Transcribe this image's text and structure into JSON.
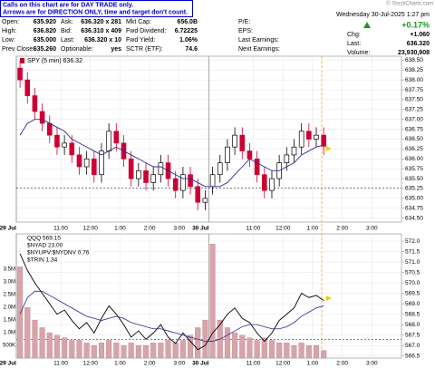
{
  "annotation": [
    "Calls on this chart are for DAY TRADE only.",
    "Arrows are for DIRECTION ONLY, time and target don't count."
  ],
  "watermark": "© StockCharts.com",
  "quote_columns": [
    [
      {
        "label": "Open:",
        "value": "635.920"
      },
      {
        "label": "High:",
        "value": "636.820"
      },
      {
        "label": "Low:",
        "value": "635.000"
      },
      {
        "label": "Prev Close:",
        "value": "635.260"
      }
    ],
    [
      {
        "label": "Ask:",
        "value": "636.320 x 281"
      },
      {
        "label": "Bid:",
        "value": "636.310 x 409"
      },
      {
        "label": "Last:",
        "value": "636.320 x 10"
      },
      {
        "label": "Optionable:",
        "value": "yes"
      }
    ],
    [
      {
        "label": "Mkt Cap:",
        "value": "656.0B"
      },
      {
        "label": "Fwd Dividend:",
        "value": "6.72225"
      },
      {
        "label": "Fwd Yield:",
        "value": "1.06%"
      },
      {
        "label": "SCTR (ETF):",
        "value": "74.6"
      }
    ],
    [
      {
        "label": "P/E:"
      },
      {
        "label": "EPS:"
      },
      {
        "label": "Last Earnings:"
      },
      {
        "label": "Next Earnings:"
      }
    ]
  ],
  "status": {
    "datetime": "Wednesday 30-Jul-2025 1:27 pm",
    "change_pct": "+0.17%",
    "rows": [
      {
        "label": "Chg:",
        "value": "+1.060"
      },
      {
        "label": "Last:",
        "value": "636.320"
      },
      {
        "label": "Volume:",
        "value": "23,930,908"
      }
    ]
  },
  "chart_data": [
    {
      "type": "candlestick",
      "title": "SPY (5 min) 636.32",
      "up_color": "#000000",
      "down_color": "#cc0033",
      "grid": true,
      "categories": [
        "29 Jul",
        null,
        null,
        null,
        null,
        null,
        "11:00",
        null,
        null,
        null,
        "12:00",
        null,
        null,
        null,
        "1:00",
        null,
        null,
        null,
        "2:00",
        null,
        null,
        null,
        "3:00",
        null,
        null,
        null,
        "30 Jul",
        null,
        null,
        null,
        null,
        null,
        "11:00",
        null,
        null,
        null,
        "12:00",
        null,
        null,
        null,
        "1:00",
        null,
        null,
        null,
        "2:00",
        null,
        null,
        null,
        "3:00",
        null,
        null,
        null
      ],
      "open": [
        638.3,
        638.0,
        637.6,
        637.2,
        636.9,
        636.6,
        636.3,
        636.4,
        636.1,
        635.8,
        636.0,
        635.6,
        636.2,
        636.7,
        636.4,
        636.0,
        635.5,
        635.7,
        635.4,
        635.6,
        635.9,
        635.5,
        635.2,
        635.6,
        635.3,
        634.9,
        635.3,
        635.6,
        635.9,
        636.3,
        636.6,
        636.2,
        636.0,
        635.6,
        635.2,
        635.5,
        635.9,
        636.1,
        636.3,
        636.7,
        636.5,
        636.6,
        null,
        null,
        null,
        null,
        null,
        null,
        null,
        null,
        null,
        null
      ],
      "high": [
        638.5,
        638.2,
        637.8,
        637.4,
        637.1,
        636.8,
        636.6,
        636.6,
        636.3,
        636.2,
        636.2,
        636.4,
        636.9,
        636.9,
        636.6,
        636.2,
        635.9,
        635.9,
        635.8,
        636.1,
        636.1,
        635.7,
        635.8,
        635.8,
        635.5,
        635.2,
        635.8,
        636.1,
        636.5,
        636.8,
        636.8,
        636.4,
        636.2,
        635.8,
        635.7,
        636.1,
        636.3,
        636.5,
        636.9,
        636.9,
        636.8,
        636.8,
        null,
        null,
        null,
        null,
        null,
        null,
        null,
        null,
        null,
        null
      ],
      "low": [
        637.8,
        637.4,
        637.0,
        636.7,
        636.4,
        636.1,
        636.1,
        635.9,
        635.6,
        635.6,
        635.4,
        635.4,
        636.0,
        636.2,
        635.8,
        635.3,
        635.3,
        635.2,
        635.2,
        635.4,
        635.3,
        635.0,
        635.0,
        635.1,
        634.7,
        634.7,
        635.1,
        635.4,
        635.7,
        636.1,
        636.0,
        635.8,
        635.4,
        635.0,
        635.0,
        635.3,
        635.7,
        635.9,
        636.1,
        636.3,
        636.3,
        636.1,
        null,
        null,
        null,
        null,
        null,
        null,
        null,
        null,
        null,
        null
      ],
      "close": [
        638.0,
        637.6,
        637.2,
        636.9,
        636.6,
        636.3,
        636.4,
        636.1,
        635.8,
        636.0,
        635.6,
        636.2,
        636.7,
        636.4,
        636.0,
        635.5,
        635.7,
        635.4,
        635.6,
        635.9,
        635.5,
        635.2,
        635.6,
        635.3,
        634.9,
        635.0,
        635.6,
        635.9,
        636.3,
        636.6,
        636.2,
        636.0,
        635.6,
        635.2,
        635.5,
        635.9,
        636.1,
        636.3,
        636.7,
        636.5,
        636.6,
        636.32,
        null,
        null,
        null,
        null,
        null,
        null,
        null,
        null,
        null,
        null
      ],
      "moving_average": {
        "color": "#2b2b8f",
        "values": [
          636.6,
          636.9,
          637.0,
          637.0,
          636.9,
          636.8,
          636.7,
          636.5,
          636.4,
          636.3,
          636.2,
          636.1,
          636.2,
          636.3,
          636.2,
          636.1,
          636.0,
          635.9,
          635.8,
          635.8,
          635.7,
          635.6,
          635.5,
          635.5,
          635.4,
          635.3,
          635.3,
          635.3,
          635.4,
          635.6,
          635.8,
          636.0,
          635.9,
          635.8,
          635.7,
          635.7,
          635.8,
          635.9,
          636.1,
          636.2,
          636.3,
          636.35,
          null,
          null,
          null,
          null,
          null,
          null,
          null,
          null,
          null,
          null
        ]
      },
      "reference_line": 635.26,
      "ylim": [
        634.4,
        638.6
      ],
      "yticks": [
        {
          "value": 634.5,
          "label": "634.50"
        },
        {
          "value": 634.75,
          "label": "634.75"
        },
        {
          "value": 635,
          "label": "635.00"
        },
        {
          "value": 635.25,
          "label": "635.25"
        },
        {
          "value": 635.5,
          "label": "635.50"
        },
        {
          "value": 635.75,
          "label": "635.75"
        },
        {
          "value": 636,
          "label": "636.00"
        },
        {
          "value": 636.25,
          "label": "636.25"
        },
        {
          "value": 636.5,
          "label": "636.50"
        },
        {
          "value": 636.75,
          "label": "636.75"
        },
        {
          "value": 637,
          "label": "637.00"
        },
        {
          "value": 637.25,
          "label": "637.25"
        },
        {
          "value": 637.5,
          "label": "637.50"
        },
        {
          "value": 637.75,
          "label": "637.75"
        },
        {
          "value": 638,
          "label": "638.00"
        },
        {
          "value": 638.25,
          "label": "638.25"
        },
        {
          "value": 638.5,
          "label": "638.50"
        }
      ]
    },
    {
      "type": "line",
      "legend_texts": [
        "$NYAD 23.00",
        "$NYUPV:$NYDNV 0.76",
        "$TRIN 1.34"
      ],
      "grid": true,
      "categories": [
        "29 Jul",
        null,
        null,
        null,
        null,
        null,
        "11:00",
        null,
        null,
        null,
        "12:00",
        null,
        null,
        null,
        "1:00",
        null,
        null,
        null,
        "2:00",
        null,
        null,
        null,
        "3:00",
        null,
        null,
        null,
        "30 Jul",
        null,
        null,
        null,
        null,
        null,
        "11:00",
        null,
        null,
        null,
        "12:00",
        null,
        null,
        null,
        "1:00",
        null,
        null,
        null,
        "2:00",
        null,
        null,
        null,
        "3:00",
        null,
        null,
        null
      ],
      "series": [
        {
          "name": "QQQ 569.15",
          "color": "#000000",
          "values": [
            571.4,
            570.6,
            570.0,
            569.5,
            569.0,
            568.5,
            568.7,
            568.2,
            567.8,
            568.1,
            567.6,
            568.3,
            568.9,
            568.5,
            568.0,
            567.4,
            567.7,
            567.3,
            567.6,
            568.0,
            567.4,
            567.1,
            567.6,
            567.2,
            566.8,
            567.0,
            567.6,
            568.0,
            568.5,
            568.8,
            568.3,
            568.1,
            567.6,
            567.2,
            567.6,
            568.2,
            568.5,
            568.8,
            569.5,
            569.3,
            569.4,
            569.15,
            null,
            null,
            null,
            null,
            null,
            null,
            null,
            null,
            null,
            null
          ]
        },
        {
          "color": "#2b2b8f",
          "values": [
            568.5,
            569.3,
            569.6,
            569.6,
            569.4,
            569.2,
            569.0,
            568.8,
            568.6,
            568.4,
            568.3,
            568.2,
            568.3,
            568.4,
            568.3,
            568.1,
            568.0,
            567.9,
            567.8,
            567.8,
            567.7,
            567.6,
            567.5,
            567.4,
            567.3,
            567.2,
            567.2,
            567.3,
            567.5,
            567.7,
            567.9,
            568.0,
            568.0,
            567.9,
            567.8,
            567.8,
            567.9,
            568.1,
            568.4,
            568.6,
            568.8,
            568.9,
            null,
            null,
            null,
            null,
            null,
            null,
            null,
            null,
            null,
            null
          ]
        }
      ],
      "reference_line": 567.3,
      "ylim": [
        566.4,
        572.35
      ],
      "yticks": [
        566.5,
        {
          "value": 567,
          "label": "567.0"
        },
        567.5,
        {
          "value": 568,
          "label": "568.0"
        },
        568.5,
        {
          "value": 569,
          "label": "569.0"
        },
        569.5,
        {
          "value": 570,
          "label": "570.0"
        },
        570.5,
        {
          "value": 571,
          "label": "571.0"
        },
        571.5,
        {
          "value": 572,
          "label": "572.0"
        }
      ],
      "volume": {
        "color": "#d9a3aa",
        "values": [
          3600000,
          2000000,
          1500000,
          1200000,
          1000000,
          900000,
          800000,
          700000,
          700000,
          600000,
          500000,
          600000,
          700000,
          600000,
          500000,
          600000,
          500000,
          500000,
          600000,
          600000,
          700000,
          600000,
          700000,
          900000,
          1200000,
          1500000,
          4500000,
          1500000,
          1200000,
          1000000,
          900000,
          800000,
          700000,
          800000,
          700000,
          600000,
          600000,
          500000,
          600000,
          500000,
          500000,
          300000,
          null,
          null,
          null,
          null,
          null,
          null,
          null,
          null,
          null,
          null
        ],
        "ylim": [
          0,
          4900000
        ],
        "yticks": [
          {
            "value": 500000,
            "label": "500K"
          },
          {
            "value": 1000000,
            "label": "1.0M"
          },
          {
            "value": 1500000,
            "label": "1.5M"
          },
          {
            "value": 2000000,
            "label": "2.0M"
          },
          {
            "value": 2500000,
            "label": "2.5M"
          },
          {
            "value": 3000000,
            "label": "3.0M"
          },
          {
            "value": 3500000,
            "label": "3.5M"
          }
        ]
      }
    }
  ]
}
